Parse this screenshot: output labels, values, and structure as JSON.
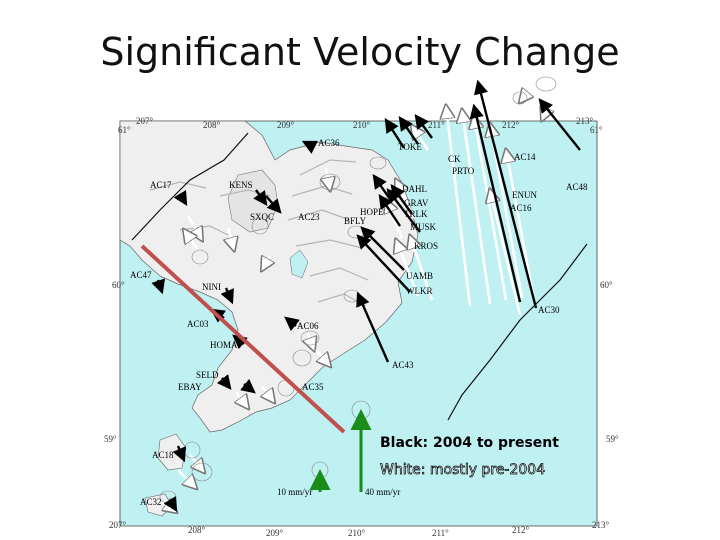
{
  "title": "Significant Velocity Change",
  "colors": {
    "ocean": "#bff0f2",
    "land": "#efefef",
    "ridge": "#b5b5b5",
    "arrow_black": "#000000",
    "arrow_white": "#ffffff",
    "scale_arrow": "#1a8c1a",
    "profile_line": "#c0504d"
  },
  "longitude_ticks": [
    "207°",
    "208°",
    "209°",
    "210°",
    "211°",
    "212°",
    "213°"
  ],
  "latitude_ticks": [
    "61°",
    "60°",
    "59°"
  ],
  "stations": [
    "AC36",
    "TOKE",
    "CK",
    "PRTO",
    "AC14",
    "AC48",
    "AC17",
    "KENS",
    "DAHL",
    "ENUN",
    "AC16",
    "SXQC",
    "AC23",
    "GRAV",
    "HOPE",
    "BFLY",
    "TRLK",
    "MUSK",
    "KROS",
    "AC47",
    "NINI",
    "UAMB",
    "WLKR",
    "AC30",
    "AC03",
    "AC06",
    "HOMA",
    "AC43",
    "SELD",
    "EBAY",
    "AC35",
    "AC18",
    "AC32"
  ],
  "scale": {
    "small_label": "10 mm/yr",
    "large_label": "40 mm/yr"
  },
  "legend": {
    "black_text": "Black: 2004 to present",
    "white_text": "White: mostly pre-2004"
  }
}
